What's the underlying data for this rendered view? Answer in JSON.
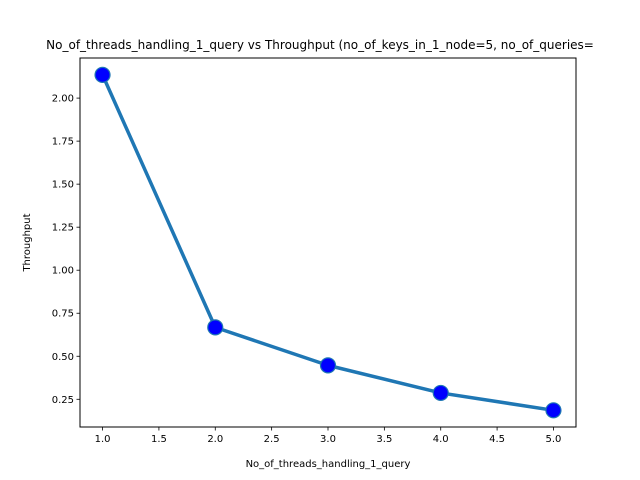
{
  "chart_data": {
    "type": "line",
    "title": "No_of_threads_handling_1_query vs Throughput (no_of_keys_in_1_node=5, no_of_queries=",
    "xlabel": "No_of_threads_handling_1_query",
    "ylabel": "Throughput",
    "x": [
      1.0,
      2.0,
      3.0,
      4.0,
      5.0
    ],
    "series": [
      {
        "values": [
          2.135,
          0.668,
          0.447,
          0.287,
          0.186
        ]
      }
    ],
    "xlim": [
      0.8,
      5.2
    ],
    "ylim": [
      0.089,
      2.233
    ],
    "xticks": [
      1.0,
      1.5,
      2.0,
      2.5,
      3.0,
      3.5,
      4.0,
      4.5,
      5.0
    ],
    "xtick_labels": [
      "1.0",
      "1.5",
      "2.0",
      "2.5",
      "3.0",
      "3.5",
      "4.0",
      "4.5",
      "5.0"
    ],
    "yticks": [
      0.25,
      0.5,
      0.75,
      1.0,
      1.25,
      1.5,
      1.75,
      2.0
    ],
    "ytick_labels": [
      "0.25",
      "0.50",
      "0.75",
      "1.00",
      "1.25",
      "1.50",
      "1.75",
      "2.00"
    ],
    "grid": false,
    "line_color": "#1f77b4",
    "marker_color": "#0000ff",
    "marker_edge_color": "#1f77b4"
  }
}
